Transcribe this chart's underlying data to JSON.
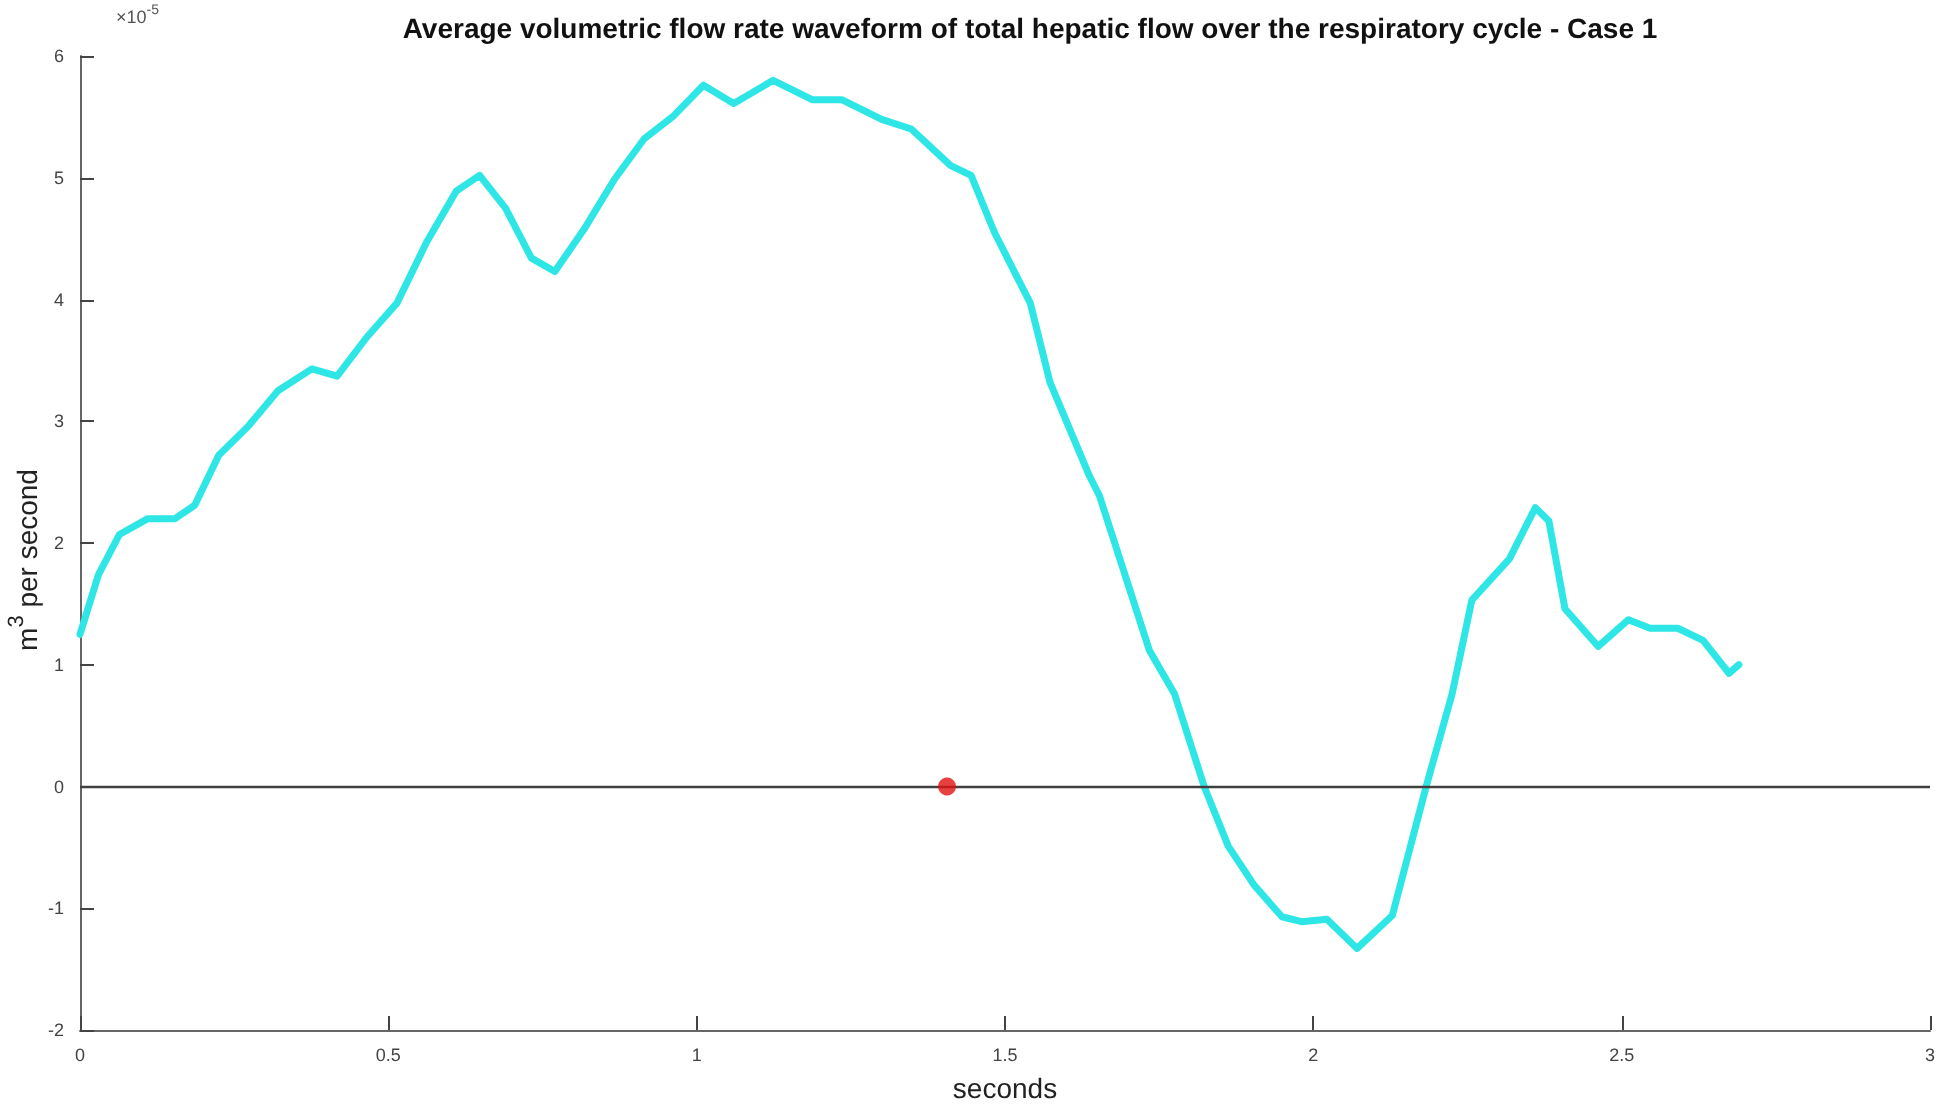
{
  "chart_data": {
    "type": "line",
    "title": "Average volumetric flow rate waveform of total hepatic flow over the respiratory cycle - Case 1",
    "xlabel": "seconds",
    "ylabel": "m$^{3}$ per second",
    "annotations": [
      "×10$^{-5}$"
    ],
    "xlim": [
      0,
      3
    ],
    "xticks": [
      0,
      0.5,
      1,
      1.5,
      2,
      2.5,
      3
    ],
    "ylim": [
      -2,
      6
    ],
    "yticks": [
      -2,
      -1,
      0,
      1,
      2,
      3,
      4,
      5,
      6
    ],
    "grid": false,
    "legend": false,
    "line_style": "solid",
    "ref_lines": [
      {
        "axis": "y",
        "value": 0,
        "color": "#404040"
      }
    ],
    "series": [
      {
        "color": "#2ee6e6",
        "x": [
          0,
          0.03,
          0.064,
          0.11,
          0.154,
          0.186,
          0.225,
          0.273,
          0.321,
          0.376,
          0.417,
          0.465,
          0.514,
          0.562,
          0.61,
          0.648,
          0.69,
          0.732,
          0.77,
          0.819,
          0.867,
          0.915,
          0.963,
          1.011,
          1.06,
          1.124,
          1.188,
          1.236,
          1.3,
          1.348,
          1.412,
          1.445,
          1.483,
          1.541,
          1.573,
          1.637,
          1.653,
          1.734,
          1.775,
          1.823,
          1.862,
          1.904,
          1.949,
          1.981,
          2.022,
          2.071,
          2.128,
          2.183,
          2.225,
          2.257,
          2.318,
          2.36,
          2.382,
          2.408,
          2.462,
          2.511,
          2.546,
          2.591,
          2.632,
          2.674,
          2.69
        ],
        "values": [
          1.25,
          1.74,
          2.07,
          2.2,
          2.2,
          2.31,
          2.72,
          2.96,
          3.25,
          3.43,
          3.37,
          3.69,
          3.97,
          4.47,
          4.89,
          5.02,
          4.75,
          4.34,
          4.23,
          4.59,
          4.99,
          5.32,
          5.51,
          5.76,
          5.61,
          5.8,
          5.64,
          5.64,
          5.48,
          5.4,
          5.1,
          5.02,
          4.55,
          3.97,
          3.32,
          2.55,
          2.39,
          1.12,
          0.76,
          0,
          -0.49,
          -0.81,
          -1.07,
          -1.11,
          -1.09,
          -1.33,
          -1.06,
          0,
          0.76,
          1.53,
          1.87,
          2.29,
          2.18,
          1.46,
          1.15,
          1.37,
          1.3,
          1.3,
          1.2,
          0.93,
          1.0
        ]
      },
      {
        "type": "scatter",
        "color": "#e01010",
        "x": [
          1.406
        ],
        "values": [
          0
        ]
      }
    ]
  }
}
